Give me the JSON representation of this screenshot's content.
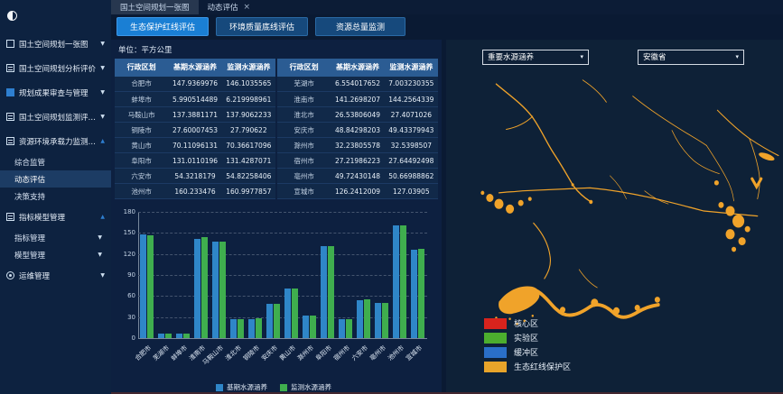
{
  "colors": {
    "accent_blue": "#1a7fd4",
    "bar_base": "#2f86c8",
    "bar_monitor": "#3fae4e",
    "map_feature": "#f0a32a",
    "table_header": "#2b5c93",
    "sidebar_bg": "#0d2240",
    "panel_bg": "#0d2040"
  },
  "window": {
    "tabs": [
      {
        "label": "国土空间规划一张图",
        "closable": false
      },
      {
        "label": "动态评估",
        "closable": true,
        "close_glyph": "×"
      }
    ]
  },
  "toolbar": {
    "buttons": [
      {
        "label": "生态保护红线评估",
        "active": true
      },
      {
        "label": "环境质量底线评估",
        "active": false
      },
      {
        "label": "资源总量监测",
        "active": false
      }
    ]
  },
  "sidebar": {
    "items": [
      {
        "label": "国土空间规划一张图",
        "icon": "map-icon",
        "icon_class": "icon-box",
        "arrow": "down",
        "level": 1
      },
      {
        "label": "国土空间规划分析评价",
        "icon": "analysis-icon",
        "icon_class": "icon-lines",
        "arrow": "down",
        "level": 1
      },
      {
        "label": "规划成果审查与管理",
        "icon": "review-icon",
        "icon_class": "icon-box-filled",
        "arrow": "down",
        "level": 1
      },
      {
        "label": "国土空间规划监测评估预警",
        "icon": "monitor-icon",
        "icon_class": "icon-lines",
        "arrow": "down",
        "level": 1
      },
      {
        "label": "资源环境承载力监测预警",
        "icon": "capacity-icon",
        "icon_class": "icon-lines",
        "arrow": "up",
        "level": 1
      },
      {
        "label": "综合监管",
        "level": 2
      },
      {
        "label": "动态评估",
        "level": 2,
        "active": true
      },
      {
        "label": "决策支持",
        "level": 2
      },
      {
        "label": "指标模型管理",
        "icon": "model-icon",
        "icon_class": "icon-lines",
        "arrow": "up",
        "level": 1
      },
      {
        "label": "指标管理",
        "level": 2,
        "arrow": "down"
      },
      {
        "label": "模型管理",
        "level": 2,
        "arrow": "down"
      },
      {
        "label": "运维管理",
        "icon": "ops-icon",
        "icon_class": "icon-gear",
        "arrow": "down",
        "level": 1
      }
    ]
  },
  "table": {
    "unit_label": "单位：平方公里",
    "headers": [
      "行政区划",
      "基期水源涵养",
      "监测水源涵养"
    ],
    "left_rows": [
      {
        "city": "合肥市",
        "base": "147.9369976",
        "monitor": "146.1035565"
      },
      {
        "city": "蚌埠市",
        "base": "5.990514489",
        "monitor": "6.219998961"
      },
      {
        "city": "马鞍山市",
        "base": "137.3881171",
        "monitor": "137.9062233"
      },
      {
        "city": "铜陵市",
        "base": "27.60007453",
        "monitor": "27.790622"
      },
      {
        "city": "黄山市",
        "base": "70.11096131",
        "monitor": "70.36617096"
      },
      {
        "city": "阜阳市",
        "base": "131.0110196",
        "monitor": "131.4287071"
      },
      {
        "city": "六安市",
        "base": "54.3218179",
        "monitor": "54.82258406"
      },
      {
        "city": "池州市",
        "base": "160.233476",
        "monitor": "160.9977857"
      }
    ],
    "right_rows": [
      {
        "city": "芜湖市",
        "base": "6.554017652",
        "monitor": "7.003230355"
      },
      {
        "city": "淮南市",
        "base": "141.2698207",
        "monitor": "144.2564339"
      },
      {
        "city": "淮北市",
        "base": "26.53806049",
        "monitor": "27.4071026"
      },
      {
        "city": "安庆市",
        "base": "48.84298203",
        "monitor": "49.43379943"
      },
      {
        "city": "滁州市",
        "base": "32.23805578",
        "monitor": "32.5398507"
      },
      {
        "city": "宿州市",
        "base": "27.21986223",
        "monitor": "27.64492498"
      },
      {
        "city": "亳州市",
        "base": "49.72430148",
        "monitor": "50.66988862"
      },
      {
        "city": "宣城市",
        "base": "126.2412009",
        "monitor": "127.03905"
      }
    ]
  },
  "chart_data": {
    "type": "bar",
    "title": "",
    "xlabel": "",
    "ylabel": "",
    "ylim": [
      0,
      180
    ],
    "ytick_step": 30,
    "grid": "dashed-horizontal",
    "legend_position": "bottom",
    "categories": [
      "合肥市",
      "芜湖市",
      "蚌埠市",
      "淮南市",
      "马鞍山市",
      "淮北市",
      "铜陵市",
      "安庆市",
      "黄山市",
      "滁州市",
      "阜阳市",
      "宿州市",
      "六安市",
      "亳州市",
      "池州市",
      "宣城市"
    ],
    "series": [
      {
        "name": "基期水源涵养",
        "color": "#2f86c8",
        "values": [
          147.94,
          6.55,
          5.99,
          141.27,
          137.39,
          26.54,
          27.6,
          48.84,
          70.11,
          32.24,
          131.01,
          27.22,
          54.32,
          49.72,
          160.23,
          126.24
        ]
      },
      {
        "name": "监测水源涵养",
        "color": "#3fae4e",
        "values": [
          146.1,
          7.0,
          6.22,
          144.26,
          137.91,
          27.41,
          27.79,
          49.43,
          70.37,
          32.54,
          131.43,
          27.64,
          54.82,
          50.67,
          161.0,
          127.04
        ]
      }
    ]
  },
  "map": {
    "layer_select": "重要水源涵养",
    "region_select": "安徽省",
    "legend": [
      {
        "label": "核心区",
        "color": "#d8231d"
      },
      {
        "label": "实验区",
        "color": "#4cae2e"
      },
      {
        "label": "缓冲区",
        "color": "#2a6fc8"
      },
      {
        "label": "生态红线保护区",
        "color": "#e8a42a"
      }
    ]
  }
}
